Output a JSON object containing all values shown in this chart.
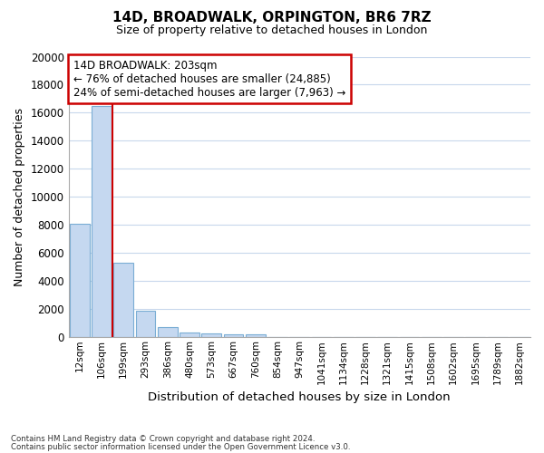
{
  "title": "14D, BROADWALK, ORPINGTON, BR6 7RZ",
  "subtitle": "Size of property relative to detached houses in London",
  "xlabel": "Distribution of detached houses by size in London",
  "ylabel": "Number of detached properties",
  "categories": [
    "12sqm",
    "106sqm",
    "199sqm",
    "293sqm",
    "386sqm",
    "480sqm",
    "573sqm",
    "667sqm",
    "760sqm",
    "854sqm",
    "947sqm",
    "1041sqm",
    "1134sqm",
    "1228sqm",
    "1321sqm",
    "1415sqm",
    "1508sqm",
    "1602sqm",
    "1695sqm",
    "1789sqm",
    "1882sqm"
  ],
  "values": [
    8100,
    16500,
    5300,
    1850,
    750,
    350,
    280,
    200,
    200,
    0,
    0,
    0,
    0,
    0,
    0,
    0,
    0,
    0,
    0,
    0,
    0
  ],
  "bar_color": "#c5d8f0",
  "bar_edge_color": "#7aadd4",
  "vline_x": 1.5,
  "vline_color": "#cc0000",
  "annotation_line1": "14D BROADWALK: 203sqm",
  "annotation_line2": "← 76% of detached houses are smaller (24,885)",
  "annotation_line3": "24% of semi-detached houses are larger (7,963) →",
  "annotation_box_edgecolor": "#cc0000",
  "ylim": [
    0,
    20000
  ],
  "yticks": [
    0,
    2000,
    4000,
    6000,
    8000,
    10000,
    12000,
    14000,
    16000,
    18000,
    20000
  ],
  "footer_line1": "Contains HM Land Registry data © Crown copyright and database right 2024.",
  "footer_line2": "Contains public sector information licensed under the Open Government Licence v3.0.",
  "bg_color": "#ffffff",
  "plot_bg_color": "#ffffff",
  "grid_color": "#c8d8ec"
}
